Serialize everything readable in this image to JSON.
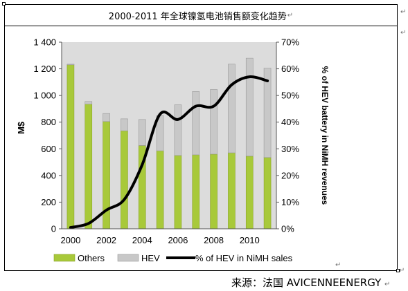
{
  "title": "2000-2011 年全球镍氢电池销售额变化趋势",
  "para_mark": "↵",
  "source": "来源：法国 AVICENNEENERGY",
  "colors": {
    "others": "#a8c93a",
    "hev": "#c8c8c8",
    "line": "#000000",
    "plot_bg": "#dcdcdc"
  },
  "chart_data": {
    "type": "bar",
    "stacked": true,
    "x": [
      2000,
      2001,
      2002,
      2003,
      2004,
      2005,
      2006,
      2007,
      2008,
      2009,
      2010,
      2011
    ],
    "x_tick_labels": [
      "2000",
      "2002",
      "2004",
      "2006",
      "2008",
      "2010"
    ],
    "ylabel": "M$",
    "y2label": "% of HEV battery in NiMH revenues",
    "ylim": [
      0,
      1400
    ],
    "y_ticks": [
      "0",
      "200",
      "400",
      "600",
      "800",
      "1 000",
      "1 200",
      "1 400"
    ],
    "y2lim": [
      0,
      70
    ],
    "y2_ticks": [
      "0%",
      "10%",
      "20%",
      "30%",
      "40%",
      "50%",
      "60%",
      "70%"
    ],
    "series": [
      {
        "name": "Others",
        "kind": "bar",
        "axis": "left",
        "values": [
          1230,
          935,
          805,
          735,
          625,
          585,
          550,
          555,
          560,
          570,
          545,
          535
        ]
      },
      {
        "name": "HEV",
        "kind": "bar",
        "axis": "left",
        "values": [
          5,
          20,
          60,
          90,
          195,
          265,
          380,
          475,
          485,
          665,
          735,
          670
        ]
      },
      {
        "name": "% of HEV in NiMH sales",
        "kind": "line",
        "axis": "right",
        "values": [
          0.5,
          2,
          7,
          11,
          24,
          43,
          41,
          46,
          46,
          54,
          57,
          55.5
        ]
      }
    ],
    "legend": [
      "Others",
      "HEV",
      "% of HEV in NiMH sales"
    ],
    "legend_position": "bottom",
    "grid": false
  }
}
